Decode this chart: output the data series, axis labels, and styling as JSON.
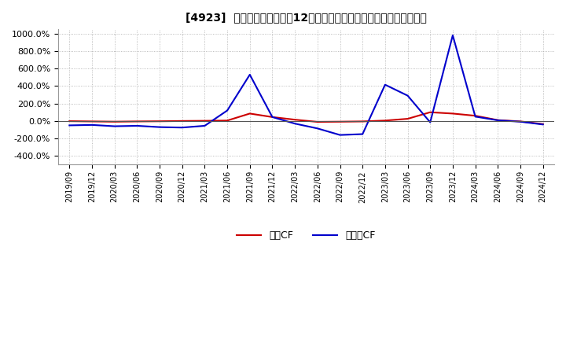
{
  "title": "[4923]  キャッシュフローの12か月移動合計の対前年同期増減率の推移",
  "background_color": "#ffffff",
  "plot_bg_color": "#ffffff",
  "grid_color": "#aaaaaa",
  "ylim": [
    -500,
    1050
  ],
  "yticks": [
    -400,
    -200,
    0,
    200,
    400,
    600,
    800,
    1000
  ],
  "legend_labels": [
    "営業CF",
    "フリーCF"
  ],
  "line_colors": [
    "#cc0000",
    "#0000cc"
  ],
  "dates": [
    "2019/09",
    "2019/12",
    "2020/03",
    "2020/06",
    "2020/09",
    "2020/12",
    "2021/03",
    "2021/06",
    "2021/09",
    "2021/12",
    "2022/03",
    "2022/06",
    "2022/09",
    "2022/12",
    "2023/03",
    "2023/06",
    "2023/09",
    "2023/12",
    "2024/03",
    "2024/06",
    "2024/09",
    "2024/12"
  ],
  "eigyo_cf": [
    -2.0,
    -5.0,
    -8.0,
    -5.0,
    -3.0,
    0.0,
    2.0,
    5.0,
    85.0,
    45.0,
    15.0,
    -10.0,
    -8.0,
    -5.0,
    5.0,
    25.0,
    100.0,
    85.0,
    60.0,
    10.0,
    -5.0,
    -35.0
  ],
  "free_cf": [
    -50.0,
    -45.0,
    -60.0,
    -55.0,
    -70.0,
    -75.0,
    -55.0,
    120.0,
    530.0,
    45.0,
    -30.0,
    -85.0,
    -160.0,
    -150.0,
    415.0,
    290.0,
    -15.0,
    980.0,
    50.0,
    8.0,
    -8.0,
    -40.0
  ]
}
